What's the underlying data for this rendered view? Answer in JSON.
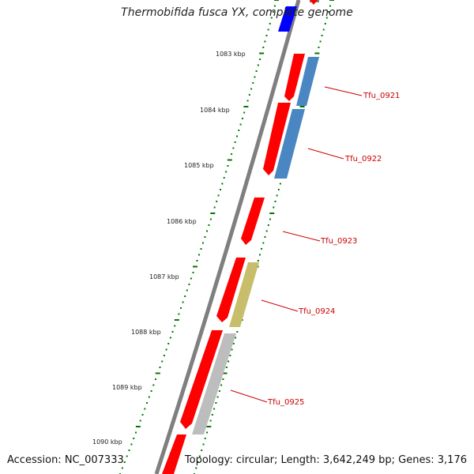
{
  "title": "Thermobifida fusca YX, complete genome",
  "accession_text": "Accession: NC_007333",
  "summary_text": "Topology: circular; Length: 3,642,249 bp; Genes: 3,176",
  "scale_labels": [
    "1083 kbp",
    "1084 kbp",
    "1085 kbp",
    "1086 kbp",
    "1087 kbp",
    "1088 kbp",
    "1089 kbp",
    "1090 kbp"
  ],
  "gene_labels": [
    "Tfu_0921",
    "Tfu_0922",
    "Tfu_0923",
    "Tfu_0924",
    "Tfu_0925"
  ],
  "colors": {
    "backbone": "#7f7f7f",
    "cds": "#ff0000",
    "cog_blue": "#4a87c2",
    "cog_olive": "#c8bd6a",
    "cog_grey": "#bdbdbd",
    "cog_top": "#0000ff",
    "scale": "#007700",
    "label": "#cc0000"
  }
}
